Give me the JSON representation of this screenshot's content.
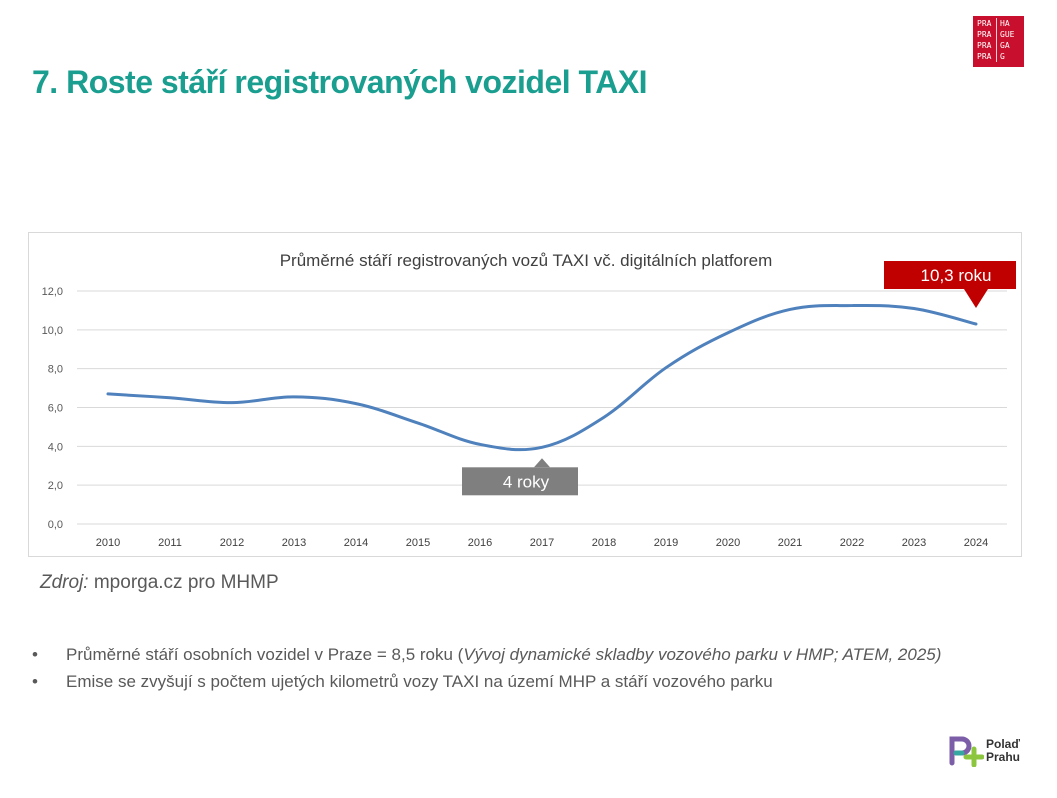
{
  "title": "7. Roste stáří registrovaných vozidel TAXI",
  "logo_praha": {
    "rows": [
      [
        "PRA",
        "HA"
      ],
      [
        "PRA",
        "GUE"
      ],
      [
        "PRA",
        "GA"
      ],
      [
        "PRA",
        "G"
      ]
    ],
    "color": "#c8102e"
  },
  "chart_data": {
    "type": "line",
    "title": "Průměrné stáří registrovaných vozů TAXI vč. digitálních platforem",
    "categories": [
      "2010",
      "2011",
      "2012",
      "2013",
      "2014",
      "2015",
      "2016",
      "2017",
      "2018",
      "2019",
      "2020",
      "2021",
      "2022",
      "2023",
      "2024"
    ],
    "series": [
      {
        "values": [
          6.7,
          6.5,
          6.25,
          6.55,
          6.2,
          5.2,
          4.1,
          3.95,
          5.5,
          8.05,
          9.85,
          11.05,
          11.25,
          11.1,
          10.3
        ],
        "color": "#4f81bd"
      }
    ],
    "y_ticks": [
      "0,0",
      "2,0",
      "4,0",
      "6,0",
      "8,0",
      "10,0",
      "12,0"
    ],
    "ylim": [
      0,
      12
    ],
    "grid": true,
    "annotations": [
      {
        "text": "4 roky",
        "category": "2017",
        "value": 3.95,
        "color": "#7f7f7f"
      },
      {
        "text": "10,3 roku",
        "category": "2024",
        "value": 10.3,
        "color": "#c00000"
      }
    ]
  },
  "source": {
    "label": "Zdroj:",
    "text": " mporga.cz pro MHMP"
  },
  "bullets": [
    {
      "text": "Průměrné stáří osobních vozidel v Praze = 8,5 roku (",
      "italic": "Vývoj dynamické skladby vozového parku v HMP; ATEM, 2025)"
    },
    {
      "text": "Emise se zvyšují s počtem ujetých kilometrů vozy TAXI na území MHP a stáří vozového parku",
      "italic": ""
    }
  ],
  "logo_polad": {
    "line1": "Polaď",
    "line2": "Prahu"
  }
}
